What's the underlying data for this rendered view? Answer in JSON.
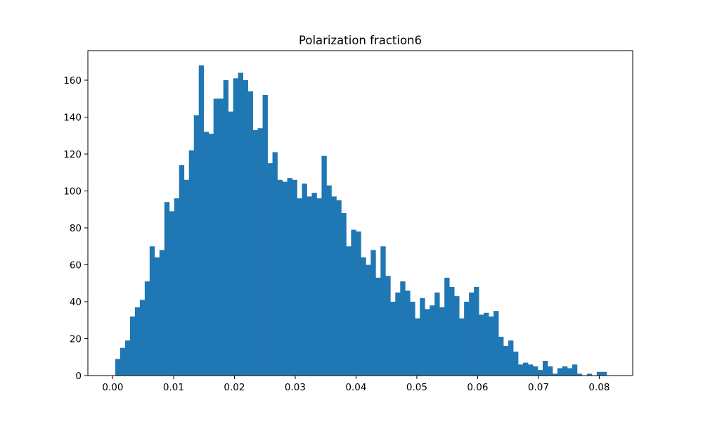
{
  "chart_data": {
    "type": "histogram",
    "title": "Polarization fraction6",
    "xlabel": "",
    "ylabel": "",
    "xlim": [
      -0.0041,
      0.0855
    ],
    "ylim": [
      0,
      176
    ],
    "grid": false,
    "bar_color": "#1f77b4",
    "bin_width": 0.000808,
    "x_start": 0.0004,
    "counts": [
      9,
      15,
      19,
      32,
      37,
      41,
      51,
      70,
      64,
      68,
      94,
      89,
      96,
      114,
      106,
      122,
      141,
      168,
      132,
      131,
      150,
      150,
      160,
      143,
      161,
      164,
      160,
      154,
      133,
      134,
      152,
      115,
      121,
      106,
      105,
      107,
      106,
      96,
      104,
      97,
      99,
      96,
      119,
      103,
      97,
      95,
      88,
      70,
      79,
      78,
      64,
      60,
      68,
      53,
      70,
      54,
      40,
      45,
      51,
      46,
      40,
      31,
      42,
      36,
      38,
      45,
      37,
      53,
      48,
      43,
      31,
      40,
      45,
      48,
      33,
      34,
      32,
      35,
      21,
      16,
      19,
      13,
      6,
      7,
      6,
      5,
      3,
      8,
      5,
      1,
      4,
      5,
      4,
      6,
      1,
      0,
      1,
      0,
      2,
      2
    ],
    "x_ticks": [
      0.0,
      0.01,
      0.02,
      0.03,
      0.04,
      0.05,
      0.06,
      0.07,
      0.08
    ],
    "x_tick_labels": [
      "0.00",
      "0.01",
      "0.02",
      "0.03",
      "0.04",
      "0.05",
      "0.06",
      "0.07",
      "0.08"
    ],
    "y_ticks": [
      0,
      20,
      40,
      60,
      80,
      100,
      120,
      140,
      160
    ],
    "y_tick_labels": [
      "0",
      "20",
      "40",
      "60",
      "80",
      "100",
      "120",
      "140",
      "160"
    ]
  }
}
